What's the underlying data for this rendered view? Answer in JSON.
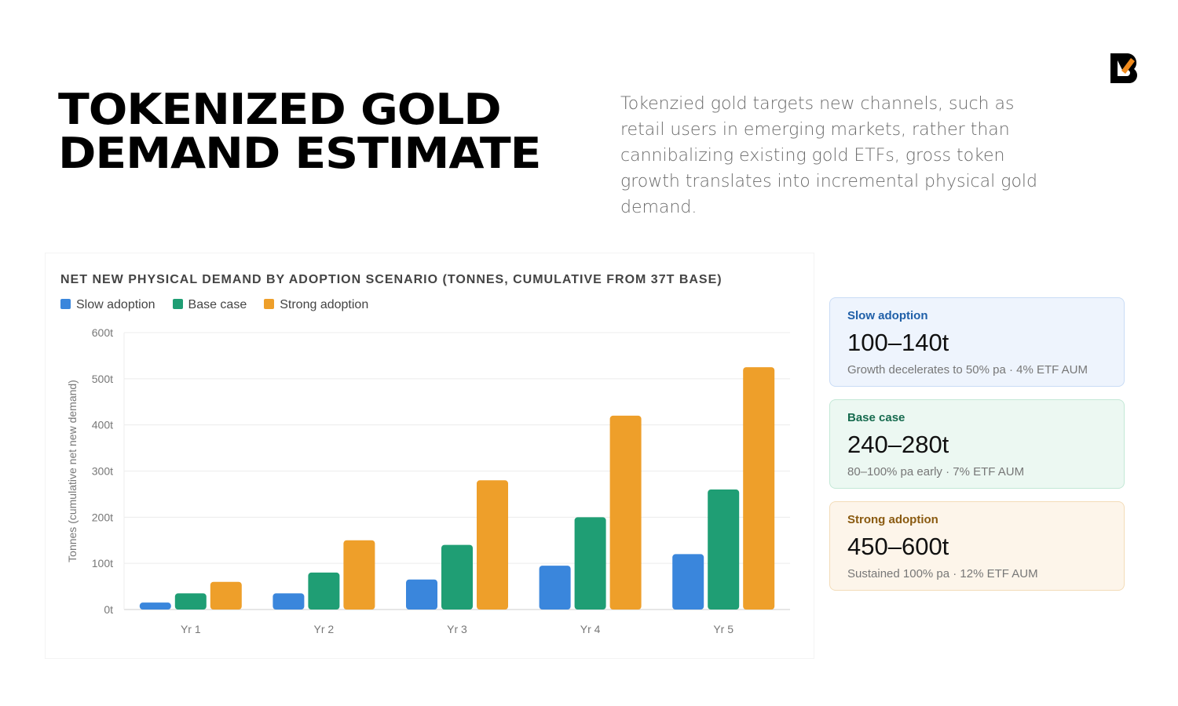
{
  "header": {
    "title_line1": "TOKENIZED GOLD",
    "title_line2": "DEMAND ESTIMATE",
    "description": "Tokenzied gold targets new channels, such as retail users in emerging markets, rather than cannibalizing existing gold ETFs, gross token growth translates into incremental physical gold demand.",
    "logo_icon": "brand-logo-b"
  },
  "chart_data": {
    "type": "bar",
    "title": "NET NEW PHYSICAL DEMAND BY ADOPTION SCENARIO (TONNES, CUMULATIVE FROM 37T BASE)",
    "ylabel": "Tonnes (cumulative net new demand)",
    "xlabel": "",
    "categories": [
      "Yr 1",
      "Yr 2",
      "Yr 3",
      "Yr 4",
      "Yr 5"
    ],
    "yticks": [
      "0t",
      "100t",
      "200t",
      "300t",
      "400t",
      "500t",
      "600t"
    ],
    "ylim": [
      0,
      600
    ],
    "grid": true,
    "legend": "top-left",
    "series": [
      {
        "name": "Slow adoption",
        "color": "#3a86dc",
        "values": [
          15,
          35,
          65,
          95,
          120
        ]
      },
      {
        "name": "Base case",
        "color": "#1f9e74",
        "values": [
          35,
          80,
          140,
          200,
          260
        ]
      },
      {
        "name": "Strong adoption",
        "color": "#ee9f2a",
        "values": [
          60,
          150,
          280,
          420,
          525
        ]
      }
    ]
  },
  "cards": [
    {
      "label": "Slow adoption",
      "value": "100–140t",
      "sub": "Growth decelerates to 50% pa · 4% ETF AUM",
      "bg": "#eef4fd",
      "border": "#c9dcf5",
      "color": "#1f5fa8"
    },
    {
      "label": "Base case",
      "value": "240–280t",
      "sub": "80–100% pa early · 7% ETF AUM",
      "bg": "#ecf8f2",
      "border": "#c3e8d6",
      "color": "#176b4f"
    },
    {
      "label": "Strong adoption",
      "value": "450–600t",
      "sub": "Sustained 100% pa · 12% ETF AUM",
      "bg": "#fdf5ea",
      "border": "#f3dcb8",
      "color": "#8a5a10"
    }
  ]
}
